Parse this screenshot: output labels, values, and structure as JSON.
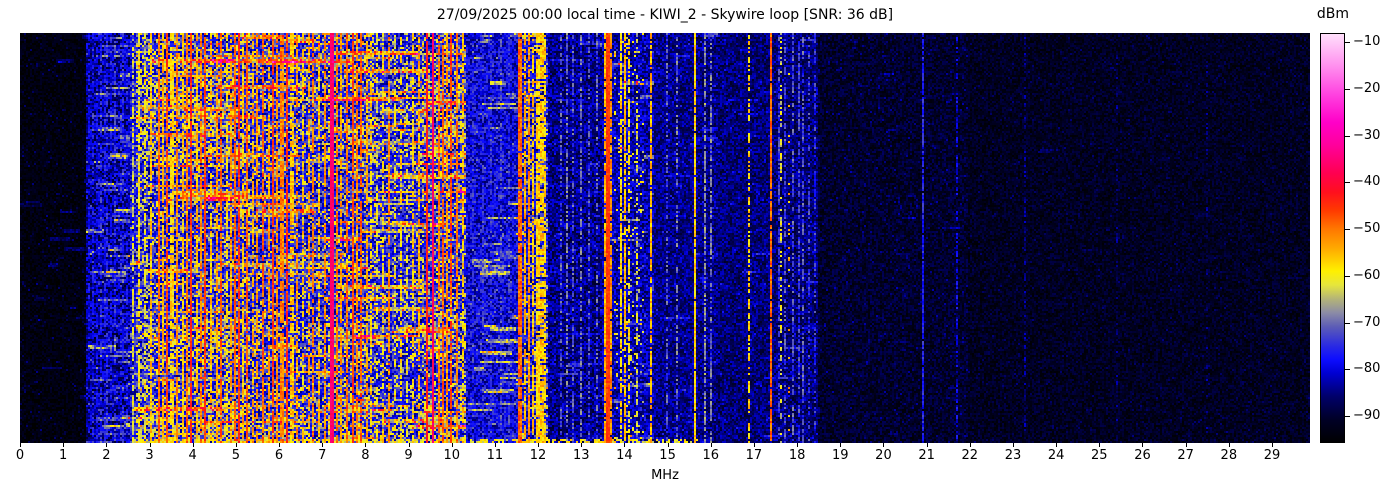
{
  "figure": {
    "title": "27/09/2025 00:00 local time - KIWI_2 - Skywire loop [SNR: 36 dB]",
    "xlabel": "MHz",
    "colorbar_label": "dBm"
  },
  "chart_data": {
    "type": "heatmap",
    "title": "27/09/2025 00:00 local time - KIWI_2 - Skywire loop [SNR: 36 dB]",
    "xlabel": "MHz",
    "x_range": [
      0,
      29.88
    ],
    "x_ticks": [
      0,
      1,
      2,
      3,
      4,
      5,
      6,
      7,
      8,
      9,
      10,
      11,
      12,
      13,
      14,
      15,
      16,
      17,
      18,
      19,
      20,
      21,
      22,
      23,
      24,
      25,
      26,
      27,
      28,
      29
    ],
    "grid": false,
    "colorbar": {
      "label": "dBm",
      "vmin": -95.8,
      "vmax": -8,
      "ticks": [
        -10,
        -20,
        -30,
        -40,
        -50,
        -60,
        -70,
        -80,
        -90
      ]
    },
    "colormap": [
      [
        -96,
        "#000000"
      ],
      [
        -91,
        "#000026"
      ],
      [
        -86,
        "#00006a"
      ],
      [
        -81,
        "#0000d2"
      ],
      [
        -78,
        "#0d0dff"
      ],
      [
        -75,
        "#2b2be2"
      ],
      [
        -71,
        "#5c5cb6"
      ],
      [
        -68,
        "#8b8ba6"
      ],
      [
        -65,
        "#b4b478"
      ],
      [
        -62,
        "#e6e63c"
      ],
      [
        -59,
        "#fff000"
      ],
      [
        -54,
        "#ffa800"
      ],
      [
        -50,
        "#ff7800"
      ],
      [
        -46,
        "#ff3a00"
      ],
      [
        -42,
        "#ff0f1e"
      ],
      [
        -38,
        "#ff0050"
      ],
      [
        -32,
        "#ff009b"
      ],
      [
        -27,
        "#ff00c8"
      ],
      [
        -21,
        "#ff42e0"
      ],
      [
        -15,
        "#ff8eee"
      ],
      [
        -10,
        "#ffc8f8"
      ],
      [
        -8,
        "#ffdffb"
      ]
    ],
    "bands": [
      {
        "f": [
          0,
          1.55
        ],
        "base": -94,
        "var": 3,
        "sp": 0.05,
        "sb": 7,
        "streaks": {
          "n": 18,
          "len": [
            0.1,
            0.5
          ],
          "boost": [
            4,
            9
          ]
        }
      },
      {
        "f": [
          1.55,
          2.55
        ],
        "base": -84,
        "var": 7,
        "sp": 0.1,
        "sb": 6,
        "streaks": {
          "n": 90,
          "len": [
            0.1,
            0.9
          ],
          "boost": [
            5,
            13
          ]
        }
      },
      {
        "f": [
          2.55,
          10.35
        ],
        "base": -78,
        "var": 8,
        "sp": 0.12,
        "sb": 8,
        "streaks": {
          "n": 150,
          "len": [
            0.2,
            2.2
          ],
          "boost": [
            8,
            19
          ]
        },
        "patches": [
          {
            "f": [
              2.7,
              5.3
            ],
            "p": 0.5
          },
          {
            "f": [
              5.3,
              7.15
            ],
            "p": 0.3
          },
          {
            "f": [
              7.15,
              8.2
            ],
            "p": 0.42
          },
          {
            "f": [
              8.2,
              9.35
            ],
            "p": 0.22
          },
          {
            "f": [
              9.35,
              10.35
            ],
            "p": 0.5
          }
        ]
      },
      {
        "f": [
          10.35,
          11.55
        ],
        "base": -80,
        "var": 7,
        "sp": 0.1,
        "sb": 6,
        "streaks": {
          "n": 40,
          "len": [
            0.15,
            1.1
          ],
          "boost": [
            6,
            16
          ]
        }
      },
      {
        "f": [
          11.55,
          12.25
        ],
        "base": -79,
        "var": 8,
        "sp": 0.1,
        "sb": 6,
        "streaks": {
          "n": 18,
          "len": [
            0.1,
            0.6
          ],
          "boost": [
            5,
            12
          ]
        },
        "patches": [
          {
            "f": [
              11.6,
              12.2
            ],
            "p": 0.22
          }
        ]
      },
      {
        "f": [
          12.25,
          13.5
        ],
        "base": -85,
        "var": 6,
        "sp": 0.08,
        "sb": 6,
        "streaks": {
          "n": 15,
          "len": [
            0.1,
            0.8
          ],
          "boost": [
            4,
            10
          ]
        }
      },
      {
        "f": [
          13.5,
          14.7
        ],
        "base": -83,
        "var": 6,
        "sp": 0.1,
        "sb": 6,
        "streaks": {
          "n": 20,
          "len": [
            0.1,
            0.8
          ],
          "boost": [
            5,
            12
          ]
        },
        "patches": [
          {
            "f": [
              13.8,
              14.45
            ],
            "p": 0.15
          }
        ]
      },
      {
        "f": [
          14.7,
          16.2
        ],
        "base": -85,
        "var": 5,
        "sp": 0.08,
        "sb": 6,
        "streaks": {
          "n": 15,
          "len": [
            0.1,
            0.7
          ],
          "boost": [
            4,
            10
          ]
        }
      },
      {
        "f": [
          16.2,
          18.5
        ],
        "base": -86,
        "var": 5,
        "sp": 0.08,
        "sb": 5,
        "streaks": {
          "n": 15,
          "len": [
            0.1,
            0.7
          ],
          "boost": [
            4,
            10
          ]
        }
      },
      {
        "f": [
          18.5,
          22
        ],
        "base": -91,
        "var": 4,
        "sp": 0.09,
        "sb": 5,
        "streaks": {
          "n": 8,
          "len": [
            0.1,
            0.5
          ],
          "boost": [
            3,
            6
          ]
        }
      },
      {
        "f": [
          22,
          29.88
        ],
        "base": -92,
        "var": 3.5,
        "sp": 0.07,
        "sb": 4,
        "streaks": {
          "n": 5,
          "len": [
            0.1,
            0.4
          ],
          "boost": [
            2,
            5
          ]
        }
      }
    ],
    "carriers": [
      [
        1.58,
        -79,
        0.5,
        0.03
      ],
      [
        1.67,
        -77,
        0.5,
        0.03
      ],
      [
        1.76,
        -79,
        0.5,
        0.03
      ],
      [
        1.85,
        -76,
        0.55,
        0.03
      ],
      [
        1.94,
        -78,
        0.5,
        0.03
      ],
      [
        2.03,
        -76,
        0.55,
        0.03
      ],
      [
        2.12,
        -78,
        0.5,
        0.03
      ],
      [
        2.21,
        -75,
        0.55,
        0.03
      ],
      [
        2.31,
        -77,
        0.5,
        0.03
      ],
      [
        2.4,
        -76,
        0.5,
        0.03
      ],
      [
        2.49,
        -78,
        0.5,
        0.03
      ],
      [
        2.63,
        -62,
        0.65,
        0.04
      ],
      [
        2.77,
        -59,
        0.7,
        0.04
      ],
      [
        2.9,
        -62,
        0.6,
        0.04
      ],
      [
        3.05,
        -56,
        0.85,
        0.05
      ],
      [
        3.2,
        -49,
        0.95,
        0.05
      ],
      [
        3.31,
        -54,
        0.85,
        0.05
      ],
      [
        3.41,
        -47,
        0.95,
        0.05
      ],
      [
        3.52,
        -56,
        0.75,
        0.05
      ],
      [
        3.64,
        -51,
        0.9,
        0.05
      ],
      [
        3.76,
        -56,
        0.8,
        0.05
      ],
      [
        3.87,
        -50,
        0.9,
        0.05
      ],
      [
        3.96,
        -45,
        0.95,
        0.05
      ],
      [
        4.08,
        -55,
        0.8,
        0.05
      ],
      [
        4.19,
        -51,
        0.85,
        0.05
      ],
      [
        4.29,
        -46,
        0.95,
        0.05
      ],
      [
        4.43,
        -56,
        0.75,
        0.05
      ],
      [
        4.56,
        -53,
        0.8,
        0.05
      ],
      [
        4.67,
        -48,
        0.9,
        0.05
      ],
      [
        4.79,
        -58,
        0.7,
        0.05
      ],
      [
        4.9,
        -53,
        0.8,
        0.05
      ],
      [
        5.0,
        -49,
        0.9,
        0.05
      ],
      [
        5.07,
        -45,
        0.95,
        0.05
      ],
      [
        5.16,
        -56,
        0.75,
        0.05
      ],
      [
        5.26,
        -48,
        0.9,
        0.05
      ],
      [
        5.4,
        -54,
        0.7,
        0.05
      ],
      [
        5.51,
        -52,
        0.8,
        0.05
      ],
      [
        5.62,
        -48,
        0.85,
        0.05
      ],
      [
        5.75,
        -53,
        0.75,
        0.05
      ],
      [
        5.84,
        -46,
        0.95,
        0.05
      ],
      [
        5.96,
        -51,
        0.85,
        0.05
      ],
      [
        6.07,
        -49,
        0.85,
        0.05
      ],
      [
        6.17,
        -45,
        0.95,
        0.05
      ],
      [
        6.3,
        -54,
        0.75,
        0.05
      ],
      [
        6.43,
        -52,
        0.7,
        0.05
      ],
      [
        6.56,
        -56,
        0.65,
        0.05
      ],
      [
        6.69,
        -53,
        0.7,
        0.05
      ],
      [
        6.8,
        -50,
        0.8,
        0.05
      ],
      [
        6.93,
        -55,
        0.7,
        0.05
      ],
      [
        7.06,
        -52,
        0.8,
        0.05
      ],
      [
        7.22,
        -34,
        1,
        0.08
      ],
      [
        7.33,
        -50,
        0.85,
        0.05
      ],
      [
        7.43,
        -53,
        0.75,
        0.05
      ],
      [
        7.56,
        -49,
        0.85,
        0.05
      ],
      [
        7.7,
        -47,
        0.9,
        0.05
      ],
      [
        7.79,
        -51,
        0.8,
        0.05
      ],
      [
        7.9,
        -48,
        0.85,
        0.05
      ],
      [
        8.02,
        -54,
        0.7,
        0.05
      ],
      [
        8.13,
        -57,
        0.65,
        0.05
      ],
      [
        8.27,
        -61,
        0.55,
        0.05
      ],
      [
        8.41,
        -58,
        0.6,
        0.05
      ],
      [
        8.54,
        -51,
        0.8,
        0.05
      ],
      [
        8.69,
        -60,
        0.5,
        0.05
      ],
      [
        8.82,
        -58,
        0.55,
        0.05
      ],
      [
        8.96,
        -61,
        0.5,
        0.05
      ],
      [
        9.1,
        -57,
        0.65,
        0.05
      ],
      [
        9.26,
        -54,
        0.7,
        0.05
      ],
      [
        9.41,
        -43,
        0.95,
        0.05
      ],
      [
        9.56,
        -37,
        1,
        0.06
      ],
      [
        9.69,
        -50,
        0.85,
        0.05
      ],
      [
        9.79,
        -48,
        0.9,
        0.05
      ],
      [
        9.9,
        -52,
        0.8,
        0.05
      ],
      [
        10.0,
        -46,
        0.9,
        0.05
      ],
      [
        10.13,
        -50,
        0.85,
        0.05
      ],
      [
        10.26,
        -56,
        0.7,
        0.05
      ],
      [
        10.5,
        -75,
        0.5,
        0.03
      ],
      [
        10.7,
        -74,
        0.5,
        0.03
      ],
      [
        10.9,
        -75,
        0.5,
        0.03
      ],
      [
        11.12,
        -73,
        0.5,
        0.03
      ],
      [
        11.32,
        -74,
        0.5,
        0.03
      ],
      [
        11.58,
        -47,
        0.95,
        0.05
      ],
      [
        11.7,
        -54,
        0.8,
        0.05
      ],
      [
        11.79,
        -52,
        0.85,
        0.05
      ],
      [
        11.9,
        -56,
        0.7,
        0.05
      ],
      [
        12.0,
        -55,
        0.8,
        0.05
      ],
      [
        12.09,
        -54,
        0.8,
        0.05
      ],
      [
        12.17,
        -58,
        0.65,
        0.05
      ],
      [
        12.5,
        -72,
        0.5,
        0.03
      ],
      [
        12.66,
        -70,
        0.6,
        0.03
      ],
      [
        12.82,
        -72,
        0.5,
        0.03
      ],
      [
        13.0,
        -70,
        0.6,
        0.03
      ],
      [
        13.16,
        -72,
        0.5,
        0.03
      ],
      [
        13.36,
        -71,
        0.5,
        0.03
      ],
      [
        13.57,
        -55,
        0.8,
        0.04
      ],
      [
        13.62,
        -44,
        1,
        0.06
      ],
      [
        13.68,
        -52,
        0.85,
        0.04
      ],
      [
        13.9,
        -57,
        0.75,
        0.04
      ],
      [
        14.0,
        -55,
        0.8,
        0.04
      ],
      [
        14.09,
        -59,
        0.6,
        0.04
      ],
      [
        14.31,
        -64,
        0.5,
        0.04
      ],
      [
        14.6,
        -55,
        0.85,
        0.05
      ],
      [
        15.0,
        -72,
        0.5,
        0.03
      ],
      [
        15.21,
        -70,
        0.5,
        0.03
      ],
      [
        15.63,
        -57,
        0.95,
        0.05
      ],
      [
        15.86,
        -68,
        0.7,
        0.03
      ],
      [
        16.02,
        -70,
        0.6,
        0.03
      ],
      [
        16.9,
        -57,
        0.55,
        0.05
      ],
      [
        17.38,
        -49,
        0.95,
        0.05
      ],
      [
        17.62,
        -62,
        0.35,
        0.04
      ],
      [
        17.8,
        -54,
        0.1,
        0.04
      ],
      [
        17.55,
        -74,
        0.6,
        0.03
      ],
      [
        17.72,
        -73,
        0.6,
        0.03
      ],
      [
        17.88,
        -72,
        0.6,
        0.03
      ],
      [
        18.02,
        -74,
        0.6,
        0.03
      ],
      [
        18.12,
        -72,
        0.6,
        0.03
      ],
      [
        18.27,
        -74,
        0.5,
        0.03
      ],
      [
        18.42,
        -75,
        0.5,
        0.03
      ],
      [
        20.92,
        -77,
        0.9,
        0.03
      ],
      [
        21.68,
        -80,
        0.5,
        0.03
      ],
      [
        23.25,
        -85,
        0.4,
        0.03
      ],
      [
        25.4,
        -86,
        0.3,
        0.03
      ],
      [
        27.5,
        -86,
        0.3,
        0.03
      ]
    ],
    "render": {
      "cols": 645,
      "rows": 205,
      "seed": 13,
      "bottom_rows": {
        "n": 2,
        "f": [
          2.55,
          15.7
        ],
        "p": 0.55,
        "lift_base": -64,
        "lift_span": 9
      }
    }
  }
}
